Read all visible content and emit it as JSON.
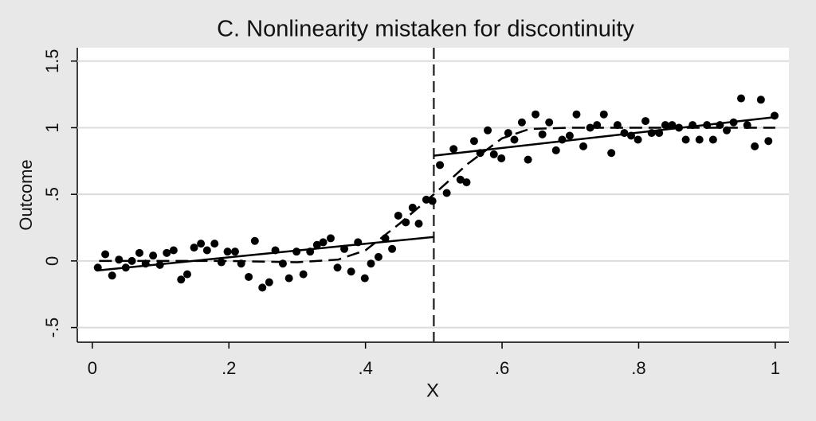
{
  "chart_data": {
    "type": "scatter",
    "title": "C. Nonlinearity mistaken for discontinuity",
    "xlabel": "X",
    "ylabel": "Outcome",
    "xlim": [
      -0.022,
      1.02
    ],
    "ylim": [
      -0.61,
      1.6
    ],
    "xticks": [
      0,
      {
        "value": 0.2,
        "label": ".2"
      },
      {
        "value": 0.4,
        "label": ".4"
      },
      {
        "value": 0.6,
        "label": ".6"
      },
      {
        "value": 0.8,
        "label": ".8"
      },
      1
    ],
    "yticks": [
      {
        "value": -0.5,
        "label": "-.5"
      },
      0,
      {
        "value": 0.5,
        "label": ".5"
      },
      1,
      {
        "value": 1.5,
        "label": "1.5"
      }
    ],
    "grid": true,
    "vline": 0.5,
    "series": [
      {
        "mode": "markers",
        "color": "#000000",
        "x": [
          0.008,
          0.019,
          0.029,
          0.039,
          0.049,
          0.058,
          0.069,
          0.078,
          0.089,
          0.099,
          0.109,
          0.119,
          0.13,
          0.139,
          0.149,
          0.159,
          0.168,
          0.179,
          0.189,
          0.198,
          0.209,
          0.218,
          0.229,
          0.238,
          0.249,
          0.259,
          0.268,
          0.279,
          0.288,
          0.299,
          0.309,
          0.319,
          0.329,
          0.338,
          0.349,
          0.359,
          0.369,
          0.379,
          0.389,
          0.399,
          0.408,
          0.419,
          0.429,
          0.439,
          0.448,
          0.459,
          0.469,
          0.478,
          0.489,
          0.498,
          0.509,
          0.519,
          0.529,
          0.539,
          0.548,
          0.559,
          0.568,
          0.579,
          0.588,
          0.599,
          0.609,
          0.618,
          0.629,
          0.638,
          0.649,
          0.659,
          0.669,
          0.679,
          0.688,
          0.699,
          0.709,
          0.719,
          0.729,
          0.739,
          0.749,
          0.76,
          0.769,
          0.779,
          0.789,
          0.799,
          0.81,
          0.819,
          0.83,
          0.839,
          0.849,
          0.859,
          0.869,
          0.879,
          0.889,
          0.9,
          0.909,
          0.919,
          0.929,
          0.939,
          0.95,
          0.959,
          0.97,
          0.979,
          0.99,
          0.999
        ],
        "values": [
          -0.05,
          0.05,
          -0.11,
          0.01,
          -0.05,
          0.0,
          0.06,
          -0.02,
          0.04,
          -0.03,
          0.06,
          0.08,
          -0.14,
          -0.1,
          0.1,
          0.13,
          0.08,
          0.13,
          -0.01,
          0.07,
          0.07,
          -0.02,
          -0.12,
          0.15,
          -0.2,
          -0.16,
          0.08,
          -0.02,
          -0.13,
          0.07,
          -0.1,
          0.07,
          0.12,
          0.14,
          0.17,
          -0.05,
          0.09,
          -0.08,
          0.14,
          -0.13,
          -0.02,
          0.03,
          0.17,
          0.09,
          0.34,
          0.29,
          0.4,
          0.28,
          0.46,
          0.45,
          0.72,
          0.51,
          0.84,
          0.61,
          0.59,
          0.9,
          0.81,
          0.98,
          0.8,
          0.77,
          0.96,
          0.91,
          1.04,
          0.76,
          1.1,
          0.95,
          1.04,
          0.83,
          0.91,
          0.94,
          1.1,
          0.86,
          1.0,
          1.02,
          1.1,
          0.81,
          1.02,
          0.96,
          0.94,
          0.91,
          1.05,
          0.96,
          0.96,
          1.02,
          1.02,
          1.0,
          0.91,
          1.02,
          0.91,
          1.02,
          0.91,
          1.02,
          0.98,
          1.04,
          1.22,
          1.02,
          0.86,
          1.21,
          0.9,
          1.09
        ]
      },
      {
        "mode": "line",
        "dash": false,
        "color": "#000000",
        "x": [
          0.01,
          0.5
        ],
        "values": [
          -0.07,
          0.18
        ]
      },
      {
        "mode": "line",
        "dash": false,
        "color": "#000000",
        "x": [
          0.5,
          1.0
        ],
        "values": [
          0.79,
          1.08
        ]
      },
      {
        "mode": "line",
        "dash": true,
        "color": "#000000",
        "x": [
          0.01,
          0.1,
          0.2,
          0.3,
          0.36,
          0.4,
          0.45,
          0.5,
          0.55,
          0.6,
          0.64,
          0.7,
          0.8,
          0.9,
          1.0
        ],
        "values": [
          0.0,
          0.0,
          0.0,
          -0.01,
          0.01,
          0.08,
          0.28,
          0.5,
          0.73,
          0.92,
          0.99,
          1.0,
          1.0,
          1.0,
          1.0
        ]
      }
    ]
  }
}
